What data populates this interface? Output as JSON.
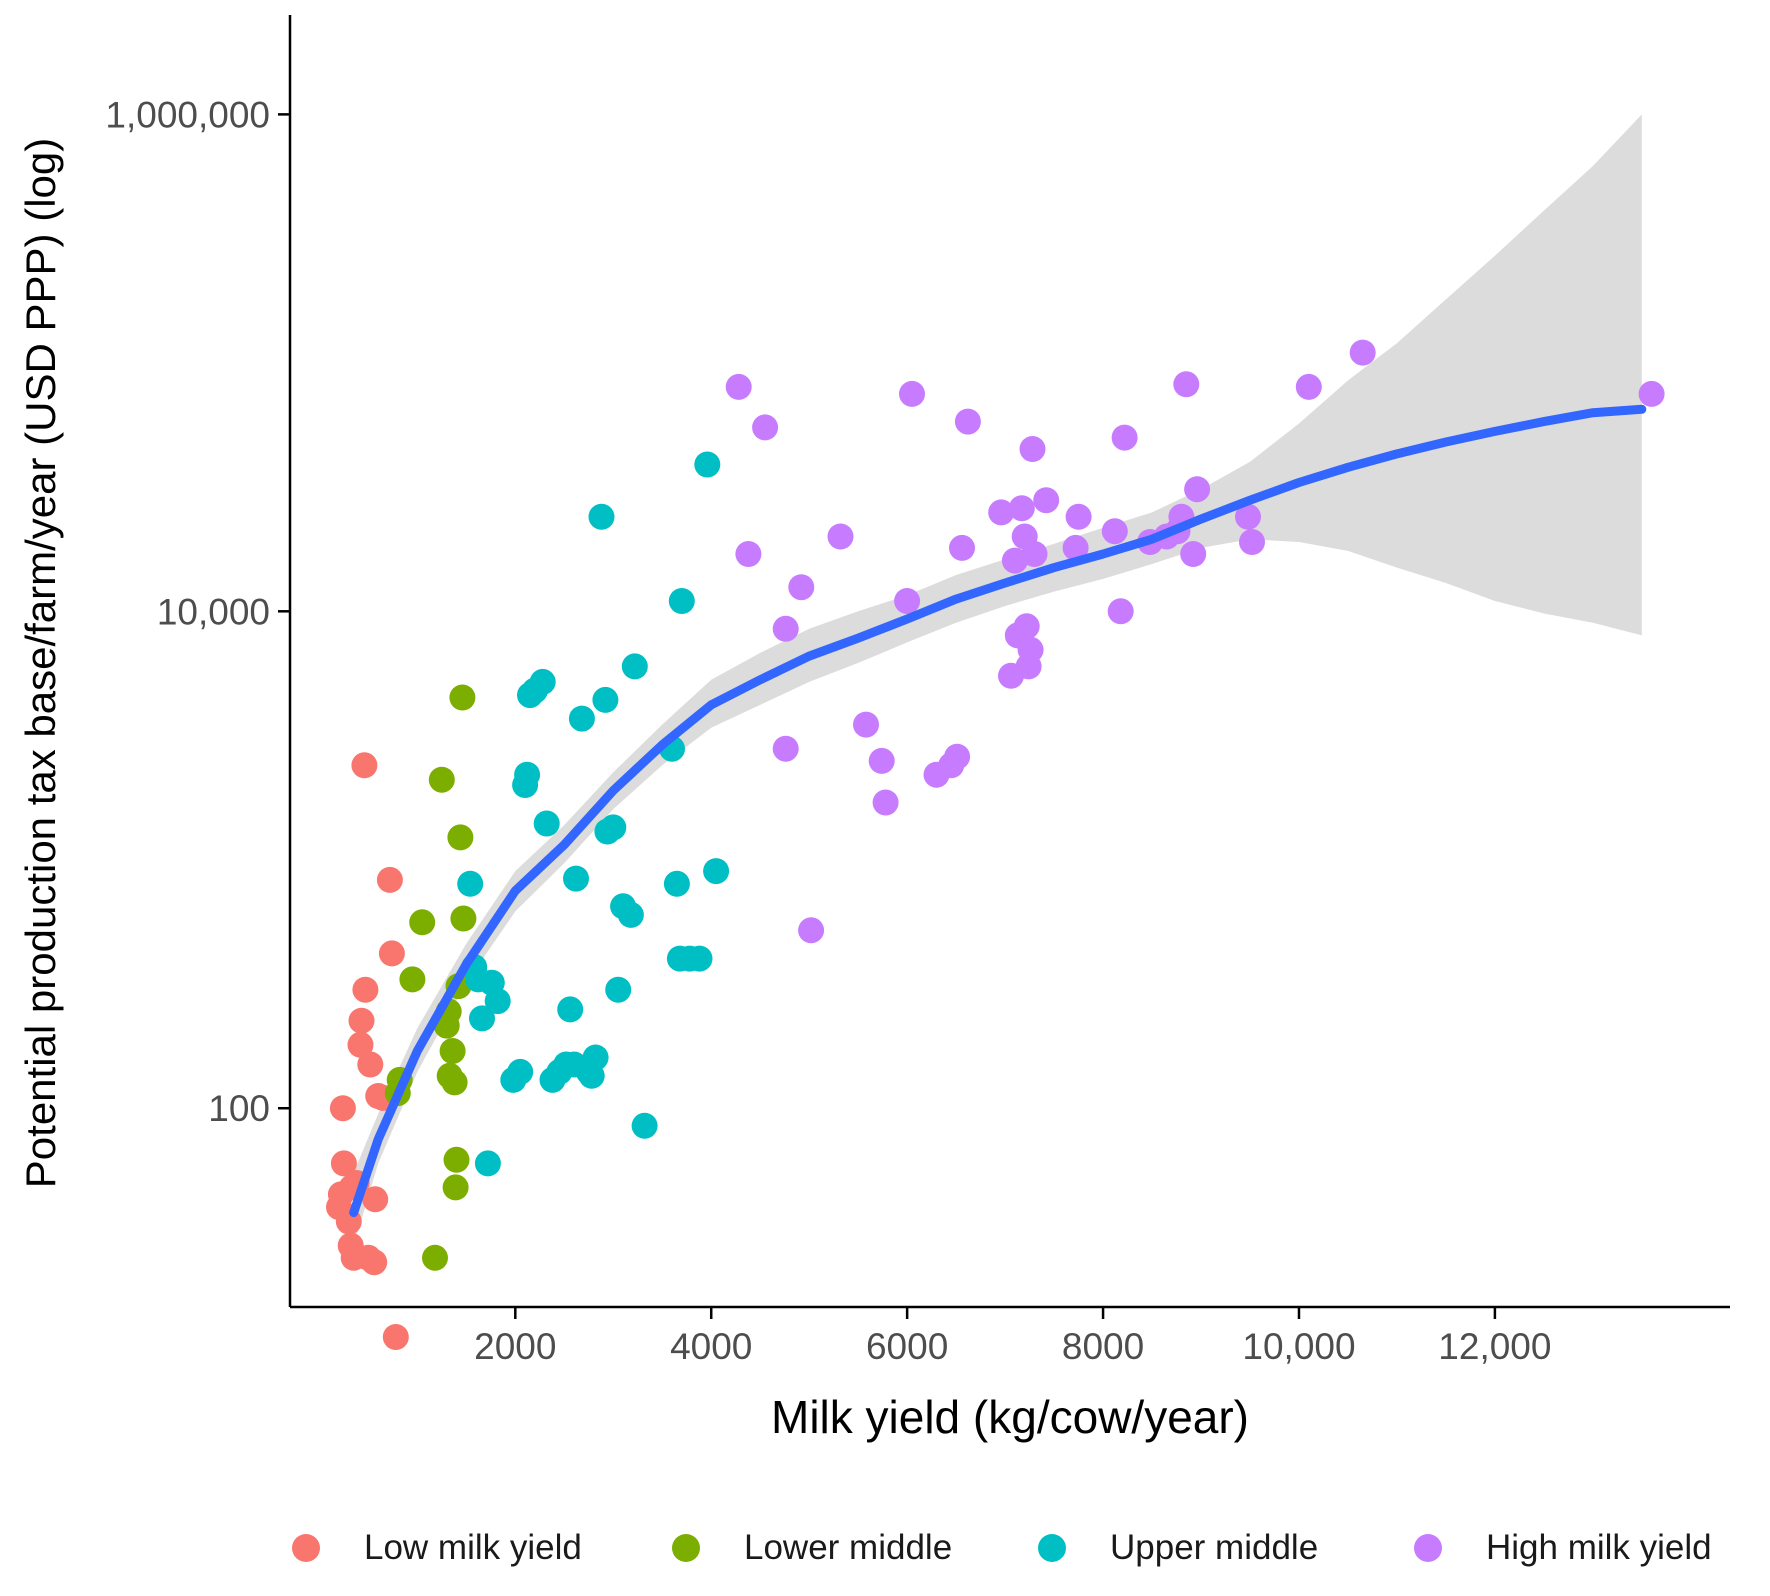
{
  "chart_data": {
    "type": "scatter",
    "title": "",
    "xlabel": "Milk yield (kg/cow/year)",
    "ylabel": "Potential production tax base/farm/year (USD PPP) (log)",
    "xlim": [
      -300,
      14400
    ],
    "ylim": [
      1.2,
      6.4
    ],
    "ylim_note": "log10 units (y axis is logarithmic)",
    "y_scale": "log10",
    "x_ticks": [
      {
        "value": 2000,
        "label": "2000"
      },
      {
        "value": 4000,
        "label": "4000"
      },
      {
        "value": 6000,
        "label": "6000"
      },
      {
        "value": 8000,
        "label": "8000"
      },
      {
        "value": 10000,
        "label": "10,000"
      },
      {
        "value": 12000,
        "label": "12,000"
      }
    ],
    "y_ticks": [
      {
        "value": 100,
        "label": "100"
      },
      {
        "value": 10000,
        "label": "10,000"
      },
      {
        "value": 1000000,
        "label": "1,000,000"
      }
    ],
    "grid": false,
    "legend_position": "bottom",
    "series": [
      {
        "name": "Low milk yield",
        "color": "#F8766D",
        "points": [
          [
            200,
            40
          ],
          [
            220,
            45
          ],
          [
            300,
            35
          ],
          [
            320,
            28
          ],
          [
            250,
            60
          ],
          [
            240,
            100
          ],
          [
            330,
            48
          ],
          [
            350,
            25
          ],
          [
            380,
            50
          ],
          [
            420,
            180
          ],
          [
            430,
            225
          ],
          [
            470,
            300
          ],
          [
            460,
            2400
          ],
          [
            500,
            25
          ],
          [
            520,
            150
          ],
          [
            560,
            24
          ],
          [
            570,
            43
          ],
          [
            600,
            112
          ],
          [
            650,
            110
          ],
          [
            720,
            830
          ],
          [
            740,
            420
          ],
          [
            780,
            12
          ]
        ]
      },
      {
        "name": "Lower middle",
        "color": "#7CAE00",
        "points": [
          [
            1180,
            25
          ],
          [
            1250,
            2100
          ],
          [
            1300,
            215
          ],
          [
            1320,
            245
          ],
          [
            1330,
            135
          ],
          [
            1360,
            170
          ],
          [
            1380,
            127
          ],
          [
            1390,
            48
          ],
          [
            1400,
            62
          ],
          [
            1420,
            310
          ],
          [
            1440,
            1230
          ],
          [
            1460,
            4500
          ],
          [
            1470,
            580
          ],
          [
            1050,
            560
          ],
          [
            950,
            330
          ],
          [
            820,
            130
          ],
          [
            800,
            115
          ]
        ]
      },
      {
        "name": "Upper middle",
        "color": "#00BFC4",
        "points": [
          [
            1540,
            800
          ],
          [
            1580,
            370
          ],
          [
            1620,
            330
          ],
          [
            1660,
            230
          ],
          [
            1720,
            60
          ],
          [
            1760,
            320
          ],
          [
            1820,
            270
          ],
          [
            1980,
            130
          ],
          [
            2050,
            140
          ],
          [
            2100,
            2000
          ],
          [
            2120,
            2200
          ],
          [
            2150,
            4600
          ],
          [
            2200,
            4800
          ],
          [
            2280,
            5200
          ],
          [
            2320,
            1400
          ],
          [
            2380,
            130
          ],
          [
            2450,
            140
          ],
          [
            2520,
            150
          ],
          [
            2560,
            250
          ],
          [
            2600,
            150
          ],
          [
            2620,
            840
          ],
          [
            2680,
            3700
          ],
          [
            2750,
            140
          ],
          [
            2780,
            135
          ],
          [
            2820,
            160
          ],
          [
            2880,
            24000
          ],
          [
            2920,
            4400
          ],
          [
            2940,
            1300
          ],
          [
            3000,
            1350
          ],
          [
            3050,
            300
          ],
          [
            3100,
            650
          ],
          [
            3180,
            600
          ],
          [
            3220,
            6000
          ],
          [
            3320,
            85
          ],
          [
            3600,
            2800
          ],
          [
            3650,
            800
          ],
          [
            3700,
            11000
          ],
          [
            3680,
            400
          ],
          [
            3780,
            400
          ],
          [
            3880,
            400
          ],
          [
            4050,
            900
          ],
          [
            3960,
            39000
          ]
        ]
      },
      {
        "name": "High milk yield",
        "color": "#C77CFF",
        "points": [
          [
            4280,
            80000
          ],
          [
            4380,
            17000
          ],
          [
            4550,
            55000
          ],
          [
            4760,
            8500
          ],
          [
            4760,
            2800
          ],
          [
            4920,
            12500
          ],
          [
            5020,
            520
          ],
          [
            5320,
            20000
          ],
          [
            5580,
            3500
          ],
          [
            5740,
            2500
          ],
          [
            5780,
            1700
          ],
          [
            6000,
            11000
          ],
          [
            6050,
            75000
          ],
          [
            6300,
            2200
          ],
          [
            6450,
            2400
          ],
          [
            6510,
            2600
          ],
          [
            6560,
            18000
          ],
          [
            6620,
            58000
          ],
          [
            6960,
            25000
          ],
          [
            7060,
            5500
          ],
          [
            7100,
            16000
          ],
          [
            7130,
            8000
          ],
          [
            7170,
            26000
          ],
          [
            7200,
            20000
          ],
          [
            7220,
            8700
          ],
          [
            7240,
            6000
          ],
          [
            7260,
            7000
          ],
          [
            7280,
            45000
          ],
          [
            7300,
            17000
          ],
          [
            7420,
            28000
          ],
          [
            7720,
            18000
          ],
          [
            7750,
            24000
          ],
          [
            8120,
            21000
          ],
          [
            8180,
            10000
          ],
          [
            8220,
            50000
          ],
          [
            8480,
            19000
          ],
          [
            8650,
            20000
          ],
          [
            8760,
            21000
          ],
          [
            8800,
            24000
          ],
          [
            8850,
            82000
          ],
          [
            8920,
            17000
          ],
          [
            8960,
            31000
          ],
          [
            9480,
            24000
          ],
          [
            9520,
            19000
          ],
          [
            10100,
            80000
          ],
          [
            10650,
            110000
          ],
          [
            13600,
            75000
          ]
        ]
      }
    ],
    "smooth_fit": {
      "name": "LOESS fit",
      "color": "#3366FF",
      "band_color": "#D6D6D6",
      "x": [
        350,
        600,
        1000,
        1500,
        2000,
        2500,
        3000,
        3500,
        4000,
        4500,
        5000,
        5500,
        6000,
        6500,
        7000,
        7500,
        8000,
        8500,
        9000,
        9500,
        10000,
        10500,
        11000,
        11500,
        12000,
        12500,
        13000,
        13500
      ],
      "y": [
        38,
        75,
        170,
        380,
        750,
        1150,
        1900,
        2900,
        4200,
        5300,
        6600,
        7800,
        9300,
        11200,
        13000,
        15000,
        17000,
        19500,
        23500,
        28000,
        33000,
        38000,
        43000,
        48000,
        53000,
        58000,
        63000,
        65000
      ],
      "lower": [
        28,
        60,
        140,
        320,
        620,
        970,
        1600,
        2400,
        3400,
        4200,
        5200,
        6200,
        7500,
        9000,
        10500,
        12000,
        13500,
        15500,
        18000,
        19500,
        19000,
        17500,
        15000,
        13000,
        11000,
        9800,
        9000,
        8000
      ],
      "upper": [
        55,
        95,
        210,
        460,
        900,
        1380,
        2250,
        3500,
        5300,
        6800,
        8500,
        10000,
        11600,
        14000,
        16200,
        18700,
        21700,
        25000,
        31000,
        40000,
        57000,
        85000,
        120000,
        180000,
        270000,
        410000,
        620000,
        1000000
      ]
    }
  }
}
